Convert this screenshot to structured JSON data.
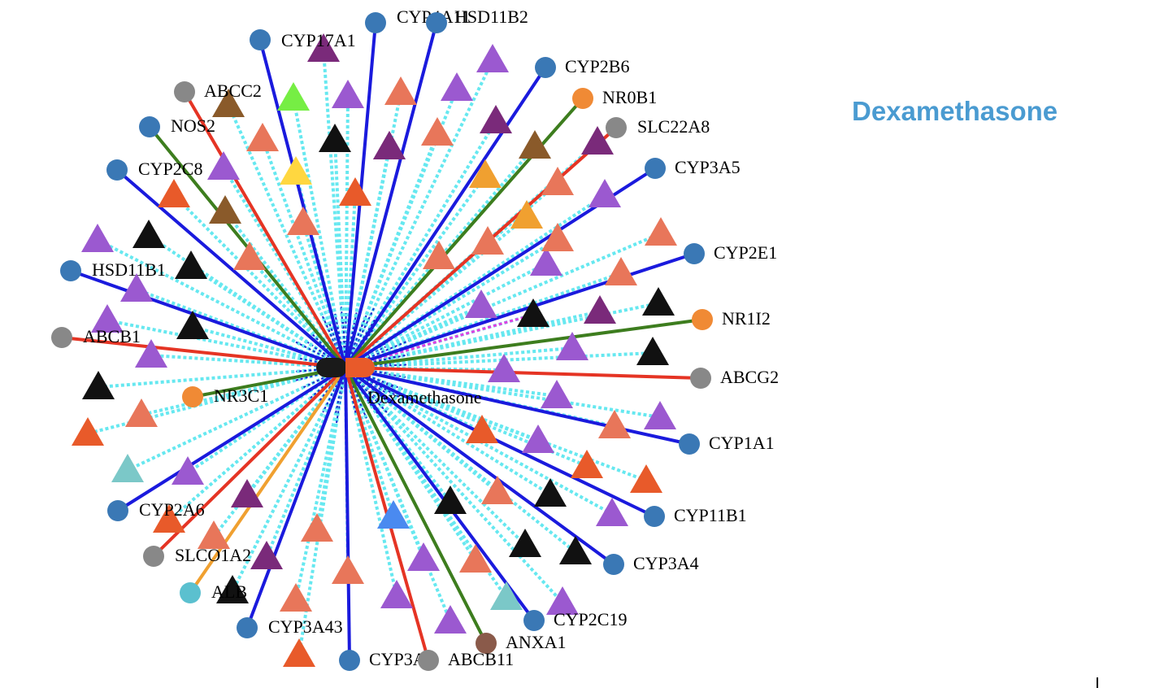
{
  "title": "Dexamethasone",
  "network": {
    "center_label": "Dexamethasone",
    "colors": {
      "drug_left": "#1a1a1a",
      "drug_right": "#e85a2a",
      "edge_dotted": "#66e8f0",
      "edge_dotted_inner": "#1a2ad0",
      "blue": "#1a1add",
      "red": "#e53424",
      "green": "#3d7d1e",
      "orange": "#f0a030",
      "magenta": "#e040e0"
    },
    "genes": [
      {
        "label": "CYP4A11",
        "color": "#3a78b5",
        "edge": "blue"
      },
      {
        "label": "HSD11B2",
        "color": "#3a78b5",
        "edge": "blue"
      },
      {
        "label": "CYP17A1",
        "color": "#3a78b5",
        "edge": "blue"
      },
      {
        "label": "CYP2B6",
        "color": "#3a78b5",
        "edge": "blue"
      },
      {
        "label": "NR0B1",
        "color": "#f08a35",
        "edge": "green"
      },
      {
        "label": "SLC22A8",
        "color": "#888888",
        "edge": "red"
      },
      {
        "label": "ABCC2",
        "color": "#888888",
        "edge": "red"
      },
      {
        "label": "NOS2",
        "color": "#3a78b5",
        "edge": "green"
      },
      {
        "label": "CYP2C8",
        "color": "#3a78b5",
        "edge": "blue"
      },
      {
        "label": "CYP3A5",
        "color": "#3a78b5",
        "edge": "blue"
      },
      {
        "label": "CYP2E1",
        "color": "#3a78b5",
        "edge": "blue"
      },
      {
        "label": "HSD11B1",
        "color": "#3a78b5",
        "edge": "blue"
      },
      {
        "label": "NR1I2",
        "color": "#f08a35",
        "edge": "green"
      },
      {
        "label": "ABCB1",
        "color": "#888888",
        "edge": "red"
      },
      {
        "label": "ABCG2",
        "color": "#888888",
        "edge": "red"
      },
      {
        "label": "NR3C1",
        "color": "#f08a35",
        "edge": "green"
      },
      {
        "label": "CYP1A1",
        "color": "#3a78b5",
        "edge": "blue"
      },
      {
        "label": "CYP2A6",
        "color": "#3a78b5",
        "edge": "blue"
      },
      {
        "label": "CYP11B1",
        "color": "#3a78b5",
        "edge": "blue"
      },
      {
        "label": "SLCO1A2",
        "color": "#888888",
        "edge": "red"
      },
      {
        "label": "CYP3A4",
        "color": "#3a78b5",
        "edge": "blue"
      },
      {
        "label": "ALB",
        "color": "#5bc0cf",
        "edge": "orange"
      },
      {
        "label": "CYP3A43",
        "color": "#3a78b5",
        "edge": "blue"
      },
      {
        "label": "CYP2C19",
        "color": "#3a78b5",
        "edge": "blue"
      },
      {
        "label": "ANXA1",
        "color": "#8a5a4a",
        "edge": "green"
      },
      {
        "label": "CYP3A7",
        "color": "#3a78b5",
        "edge": "blue"
      },
      {
        "label": "ABCB11",
        "color": "#888888",
        "edge": "red"
      }
    ],
    "triangle_colors": [
      "#7a2a7a",
      "#9b59d0",
      "#e8765a",
      "#9b59d0",
      "#7a2a7a",
      "#8a5a2a",
      "#e8765a",
      "#9b59d0",
      "#7a2a7a",
      "#8a5a2a",
      "#e8765a",
      "#9b59d0",
      "#111111",
      "#e8765a",
      "#7a2a7a",
      "#ffd740",
      "#f0a030",
      "#e8765a",
      "#9b59d0",
      "#e85a2a",
      "#7a2a7a",
      "#e85a2a",
      "#8a5a2a",
      "#e8765a",
      "#76ee44",
      "#e8765a",
      "#f0a030",
      "#e8765a",
      "#9b59d0",
      "#111111",
      "#e8765a",
      "#111111",
      "#9b59d0",
      "#111111",
      "#111111",
      "#9b59d0",
      "#7a2a7a",
      "#9b59d0",
      "#111111",
      "#9b59d0",
      "#9b59d0",
      "#111111",
      "#111111",
      "#9b59d0",
      "#9b59d0",
      "#e8765a",
      "#e8765a",
      "#e85a2a",
      "#7bc8c8",
      "#9b59d0",
      "#e85a2a",
      "#e85a2a",
      "#7a2a7a",
      "#e8765a",
      "#9b59d0",
      "#111111",
      "#111111",
      "#e8765a",
      "#e85a2a",
      "#e8765a",
      "#e85a2a",
      "#9b59d0",
      "#9b59d0",
      "#111111",
      "#4a8af0",
      "#9b59d0",
      "#e8765a",
      "#e8765a",
      "#9b59d0",
      "#7bc8c8",
      "#9b59d0",
      "#111111",
      "#e85a2a",
      "#9b59d0",
      "#e8765a",
      "#9b59d0",
      "#e8765a",
      "#111111",
      "#7a2a7a",
      "#e8765a"
    ]
  }
}
